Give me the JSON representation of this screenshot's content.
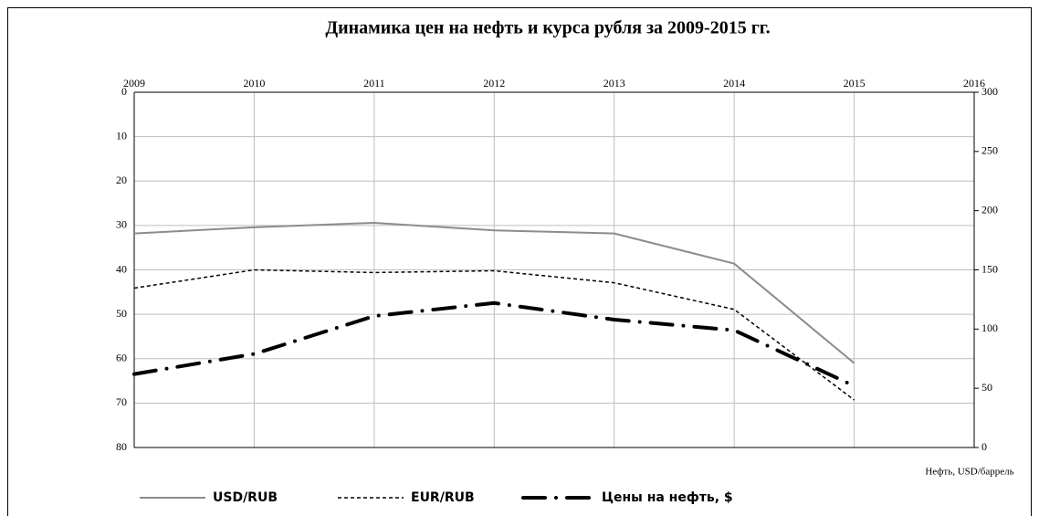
{
  "chart_data": {
    "type": "line",
    "title": "Динамика цен на нефть и курса рубля за 2009-2015 гг.",
    "y2_label": "Нефть, USD/баррель",
    "x": [
      2009,
      2010,
      2011,
      2012,
      2013,
      2014,
      2015
    ],
    "xlim": [
      2009,
      2016
    ],
    "xticks": [
      2009,
      2010,
      2011,
      2012,
      2013,
      2014,
      2015,
      2016
    ],
    "ylim": [
      80,
      0
    ],
    "yticks": [
      0,
      10,
      20,
      30,
      40,
      50,
      60,
      70,
      80
    ],
    "y2lim": [
      0,
      300
    ],
    "y2ticks": [
      0,
      50,
      100,
      150,
      200,
      250,
      300
    ],
    "grid": true,
    "legend": "bottom",
    "series": [
      {
        "name": "USD/RUB",
        "color": "#8c8c8c",
        "style": "solid",
        "values": [
          31.8,
          30.4,
          29.4,
          31.1,
          31.8,
          38.6,
          61.0
        ]
      },
      {
        "name": "EUR/RUB",
        "color": "#000000",
        "style": "dashed",
        "values": [
          44.1,
          40.0,
          40.6,
          40.2,
          42.9,
          48.9,
          69.3
        ]
      },
      {
        "name": "Цены на нефть, $",
        "color": "#000000",
        "style": "dash-dot",
        "axis": "y2",
        "values": [
          62,
          79,
          111,
          122,
          108,
          99,
          52
        ]
      }
    ]
  }
}
